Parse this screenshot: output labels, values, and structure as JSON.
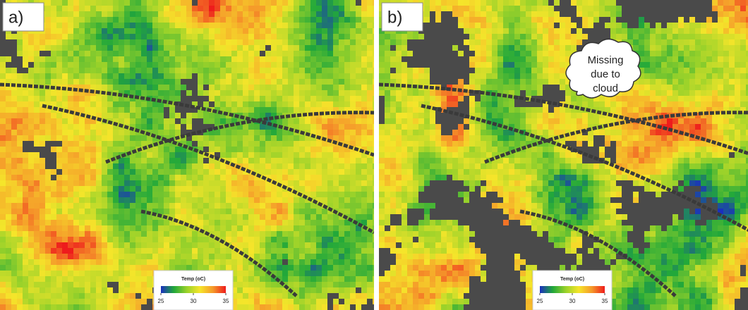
{
  "panels": [
    {
      "label": "a)",
      "legend": {
        "title": "Temp (oC)",
        "ticks": [
          25,
          30,
          35
        ]
      }
    },
    {
      "label": "b)",
      "legend": {
        "title": "Temp (oC)",
        "ticks": [
          25,
          30,
          35
        ]
      },
      "annotation": [
        "Missing",
        "due to",
        "cloud"
      ]
    }
  ],
  "colormap": [
    "#1a2fbf",
    "#22a83a",
    "#9ad22a",
    "#f5e52a",
    "#f59a2a",
    "#ee1c1c"
  ]
}
